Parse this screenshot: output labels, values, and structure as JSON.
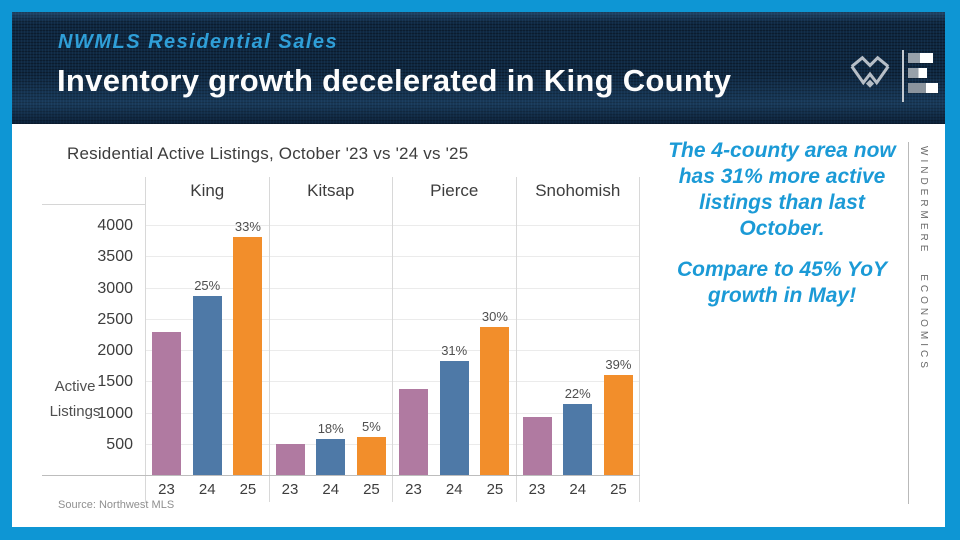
{
  "header": {
    "kicker": "NWMLS Residential Sales",
    "title": "Inventory growth decelerated in King County"
  },
  "brand": {
    "vertical_text": "WINDERMERE ECONOMICS",
    "icons": {
      "w_logo": "windermere-w-logo",
      "econ_logo": "bar-chart-logo"
    }
  },
  "callout": {
    "p1": "The 4-county area now has 31% more active listings than last October.",
    "p2": "Compare to 45% YoY growth in May!"
  },
  "colors": {
    "frame_blue": "#0e96d4",
    "header_navy": "#0f2740",
    "kicker_blue": "#2f9fd8",
    "callout_blue": "#1b9ad6"
  },
  "chart_data": {
    "type": "bar",
    "title": "Residential Active Listings, October '23 vs '24 vs '25",
    "categories": [
      "King",
      "Kitsap",
      "Pierce",
      "Snohomish"
    ],
    "series": [
      {
        "name": "23",
        "color": "#b07aa1",
        "values": [
          2300,
          510,
          1400,
          950
        ],
        "labels": [
          "",
          "",
          "",
          ""
        ]
      },
      {
        "name": "24",
        "color": "#4e79a7",
        "values": [
          2875,
          600,
          1835,
          1160
        ],
        "labels": [
          "25%",
          "18%",
          "31%",
          "22%"
        ]
      },
      {
        "name": "25",
        "color": "#f28e2b",
        "values": [
          3820,
          630,
          2385,
          1610
        ],
        "labels": [
          "33%",
          "5%",
          "30%",
          "39%"
        ]
      }
    ],
    "ylabel": "Active Listings",
    "yticks": [
      500,
      1000,
      1500,
      2000,
      2500,
      3000,
      3500,
      4000
    ],
    "ylim": [
      0,
      4340
    ],
    "grid": true,
    "legend": "none",
    "source": "Source: Northwest MLS"
  }
}
